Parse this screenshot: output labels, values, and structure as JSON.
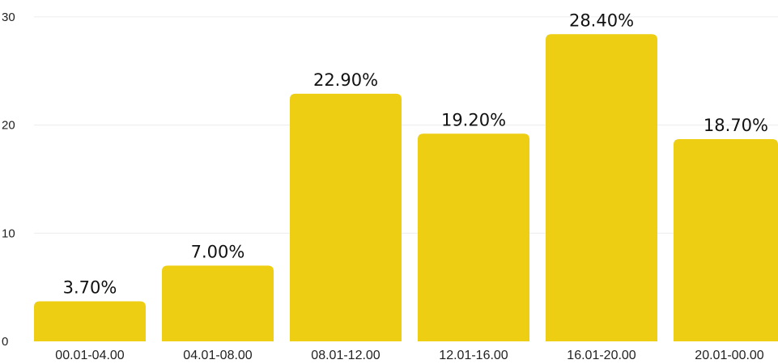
{
  "chart_data": {
    "type": "bar",
    "title": "",
    "xlabel": "",
    "ylabel": "",
    "categories": [
      "00.01-04.00",
      "04.01-08.00",
      "08.01-12.00",
      "12.01-16.00",
      "16.01-20.00",
      "20.01-00.00"
    ],
    "values": [
      3.7,
      7.0,
      22.9,
      19.2,
      28.4,
      18.7
    ],
    "data_labels": [
      "3.70%",
      "7.00%",
      "22.90%",
      "19.20%",
      "28.40%",
      "18.70%"
    ],
    "ylim": [
      0,
      30
    ],
    "yticks": [
      "0",
      "10",
      "20",
      "30"
    ],
    "grid": true,
    "legend": "none",
    "colors": {
      "bar": "#EDCE12",
      "grid": "#ececec",
      "text": "#222222"
    }
  }
}
